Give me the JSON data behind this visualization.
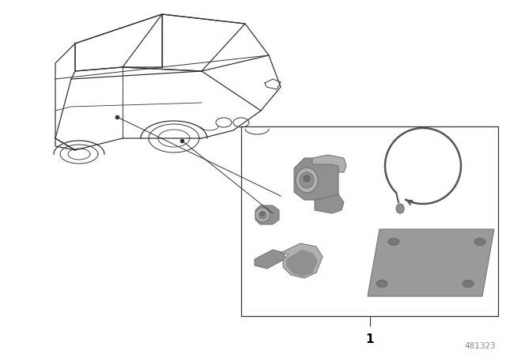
{
  "background_color": "#ffffff",
  "line_color": "#333333",
  "diagram_number": "481323",
  "part_number_label": "1",
  "fig_width": 6.4,
  "fig_height": 4.48,
  "dpi": 100,
  "grey_light": "#b0b0b0",
  "grey_mid": "#909090",
  "grey_dark": "#707070",
  "grey_plate": "#9a9a9a",
  "ring_color": "#555555"
}
